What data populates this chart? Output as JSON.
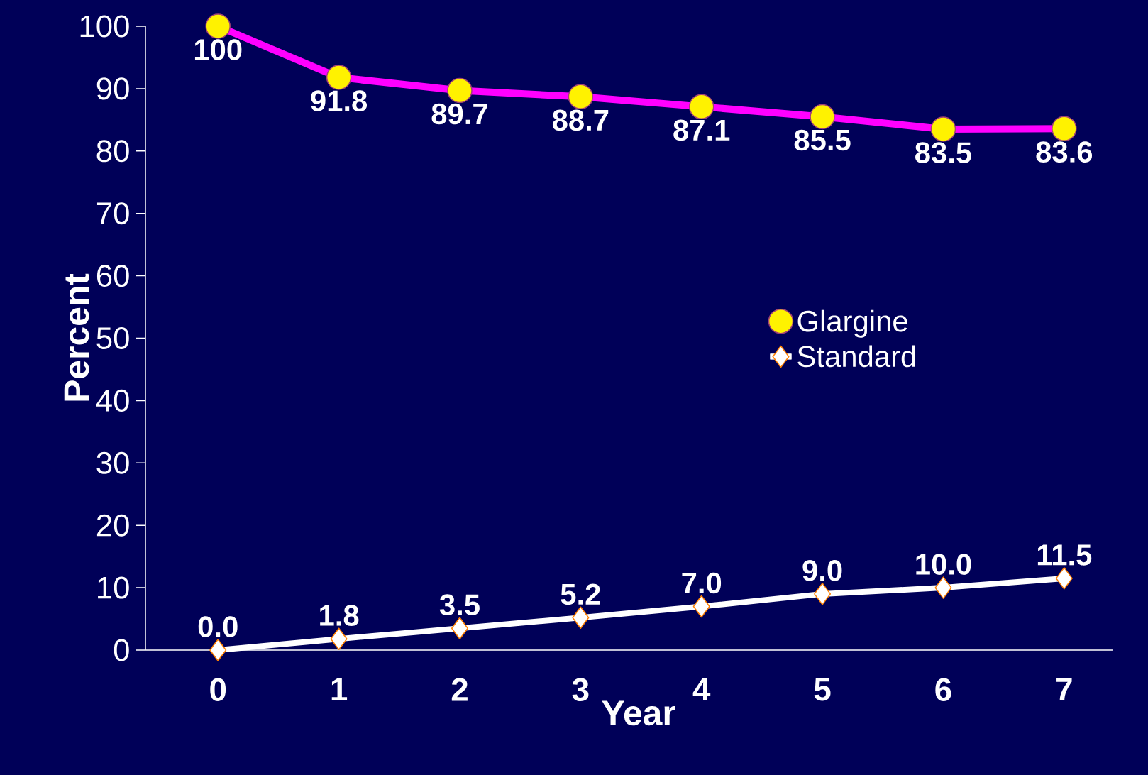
{
  "chart_data": {
    "type": "line",
    "xlabel": "Year",
    "ylabel": "Percent",
    "categories": [
      "0",
      "1",
      "2",
      "3",
      "4",
      "5",
      "6",
      "7"
    ],
    "series": [
      {
        "name": "Glargine",
        "color": "#ff00ff",
        "marker": "circle",
        "values": [
          100,
          91.8,
          89.7,
          88.7,
          87.1,
          85.5,
          83.5,
          83.6
        ],
        "value_labels": [
          "100",
          "91.8",
          "89.7",
          "88.7",
          "87.1",
          "85.5",
          "83.5",
          "83.6"
        ]
      },
      {
        "name": "Standard",
        "color": "#ffffff",
        "marker": "diamond",
        "values": [
          0.0,
          1.8,
          3.5,
          5.2,
          7.0,
          9.0,
          10.0,
          11.5
        ],
        "value_labels": [
          "0.0",
          "1.8",
          "3.5",
          "5.2",
          "7.0",
          "9.0",
          "10.0",
          "11.5"
        ]
      }
    ],
    "ylim": [
      0,
      100
    ],
    "yticks": [
      0,
      10,
      20,
      30,
      40,
      50,
      60,
      70,
      80,
      90,
      100
    ],
    "grid": false,
    "legend": "right",
    "line_style": "solid"
  }
}
